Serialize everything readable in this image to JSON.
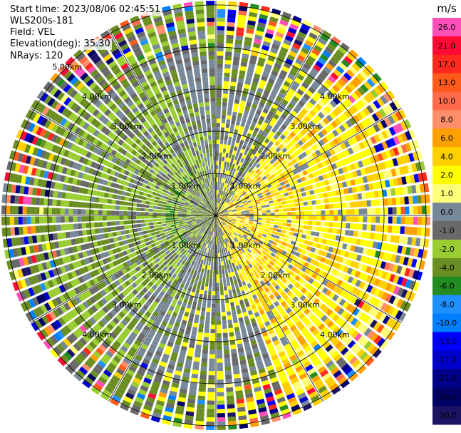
{
  "header": {
    "start_time": "Start time: 2023/08/06 02:45:51",
    "site": "WLS200s-181",
    "field": "Field: VEL",
    "elevation": "Elevation(deg): 35.30",
    "nrays": "NRays: 120"
  },
  "chart_data": {
    "type": "heatmap",
    "projection": "polar-ppi",
    "field": "VEL",
    "unit": "m/s",
    "nrays": 120,
    "elevation_deg": 35.3,
    "range_rings_km": [
      1,
      2,
      3,
      4,
      5
    ],
    "ring_labels": [
      "1.00km",
      "2.00km",
      "3.00km",
      "4.00km",
      "5.00km"
    ],
    "max_range_km": 5.1,
    "colorbar": {
      "ticks": [
        "26.0",
        "21.0",
        "17.0",
        "13.0",
        "10.0",
        "8.0",
        "6.0",
        "4.0",
        "2.0",
        "1.0",
        "0.0",
        "-1.0",
        "-2.0",
        "-4.0",
        "-6.0",
        "-8.0",
        "-10.0",
        "-13.0",
        "-17.0",
        "-21.0",
        "-26.0",
        "-30.0"
      ],
      "colors": [
        "#ff4fb8",
        "#ff0a34",
        "#ff2a1e",
        "#ff5a1a",
        "#ff6a4a",
        "#ff8f6a",
        "#ffa000",
        "#ffd000",
        "#ffff00",
        "#ffff7a",
        "#778899",
        "#696969",
        "#9acd32",
        "#6b8e23",
        "#228b22",
        "#1e90ff",
        "#0080ff",
        "#0000ff",
        "#0000cd",
        "#00008b",
        "#000066",
        "#1b1464"
      ]
    },
    "pattern": {
      "positive_sector_deg": [
        40,
        160
      ],
      "negative_sector_deg": [
        220,
        340
      ]
    }
  }
}
